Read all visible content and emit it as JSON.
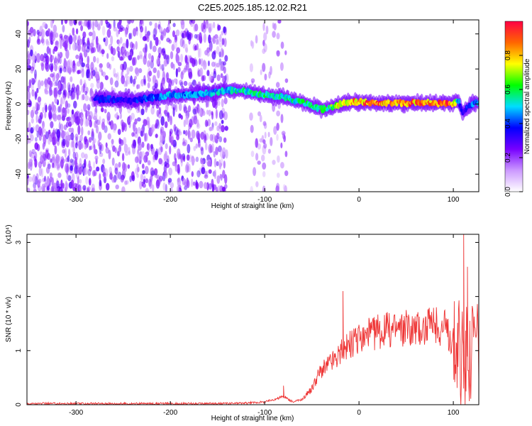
{
  "figure_title": "C2E5.2025.185.12.02.R21",
  "chart_data": [
    {
      "type": "heatmap",
      "title": "",
      "xlabel": "Height of straight line (km)",
      "ylabel": "Frequency (Hz)",
      "xlim": [
        -352,
        127
      ],
      "ylim": [
        -50,
        48
      ],
      "xticks": [
        -300,
        -200,
        -100,
        0,
        100
      ],
      "yticks": [
        -40,
        -20,
        0,
        20,
        40
      ],
      "colorbar": {
        "label": "Normalized spectral amplitude",
        "range": [
          0,
          1
        ],
        "ticks": [
          0.0,
          0.2,
          0.4,
          0.6,
          0.8
        ],
        "colormap": [
          "#ffffff",
          "#cc99ff",
          "#7700ff",
          "#0000ff",
          "#00ddff",
          "#00ff00",
          "#ffff00",
          "#ff6600",
          "#ff0044"
        ]
      },
      "ridge": {
        "x": [
          -280,
          -240,
          -200,
          -160,
          -140,
          -120,
          -100,
          -80,
          -60,
          -50,
          -40,
          -30,
          -20,
          -10,
          0,
          20,
          40,
          60,
          80,
          100,
          105,
          110,
          120,
          127
        ],
        "frequency": [
          3,
          2,
          5,
          6,
          8,
          7,
          5,
          4,
          1,
          -1,
          -3,
          -2,
          0,
          1,
          1,
          0.5,
          0.5,
          0.5,
          0.5,
          0.5,
          2,
          -5,
          0.5,
          0.5
        ],
        "amplitude": [
          0.4,
          0.4,
          0.5,
          0.5,
          0.55,
          0.6,
          0.6,
          0.6,
          0.6,
          0.6,
          0.6,
          0.7,
          0.8,
          0.85,
          0.95,
          0.95,
          0.95,
          0.95,
          0.95,
          0.95,
          0.5,
          0.35,
          0.5,
          0.5
        ]
      },
      "background_noise": {
        "x_range": [
          -352,
          -140
        ],
        "extra_x_range": [
          -115,
          -75
        ],
        "amplitude": 0.2
      }
    },
    {
      "type": "line",
      "title": "",
      "xlabel": "Height of straight line (km)",
      "ylabel": "SNR (10 * v/v)",
      "scale_label": "(x10⁴)",
      "xlim": [
        -352,
        127
      ],
      "ylim": [
        0,
        3.15
      ],
      "xticks": [
        -300,
        -200,
        -100,
        0,
        100
      ],
      "yticks": [
        0,
        1,
        2,
        3
      ],
      "color": "#ee3333",
      "series": [
        {
          "x": [
            -352,
            -300,
            -250,
            -200,
            -150,
            -120,
            -100,
            -90,
            -80,
            -70,
            -60,
            -50,
            -45,
            -40,
            -35,
            -30,
            -25,
            -20,
            -17,
            -15,
            -10,
            0,
            10,
            20,
            30,
            40,
            50,
            60,
            70,
            80,
            90,
            95,
            100,
            103,
            106,
            108,
            110,
            112,
            115,
            118,
            120,
            127
          ],
          "values": [
            0.02,
            0.02,
            0.02,
            0.02,
            0.02,
            0.03,
            0.05,
            0.1,
            0.15,
            0.05,
            0.1,
            0.3,
            0.5,
            0.65,
            0.7,
            0.8,
            0.85,
            0.95,
            1.0,
            1.05,
            1.1,
            1.2,
            1.3,
            1.35,
            1.38,
            1.4,
            1.42,
            1.42,
            1.44,
            1.45,
            1.45,
            1.3,
            1.2,
            1.0,
            1.5,
            0.3,
            1.8,
            0.2,
            1.5,
            0.6,
            1.25,
            1.25
          ]
        }
      ],
      "peaks": [
        {
          "x": -80,
          "value": 0.35
        },
        {
          "x": -17,
          "value": 2.1
        },
        {
          "x": 111,
          "value": 3.15
        },
        {
          "x": 115,
          "value": 2.55
        }
      ]
    }
  ]
}
